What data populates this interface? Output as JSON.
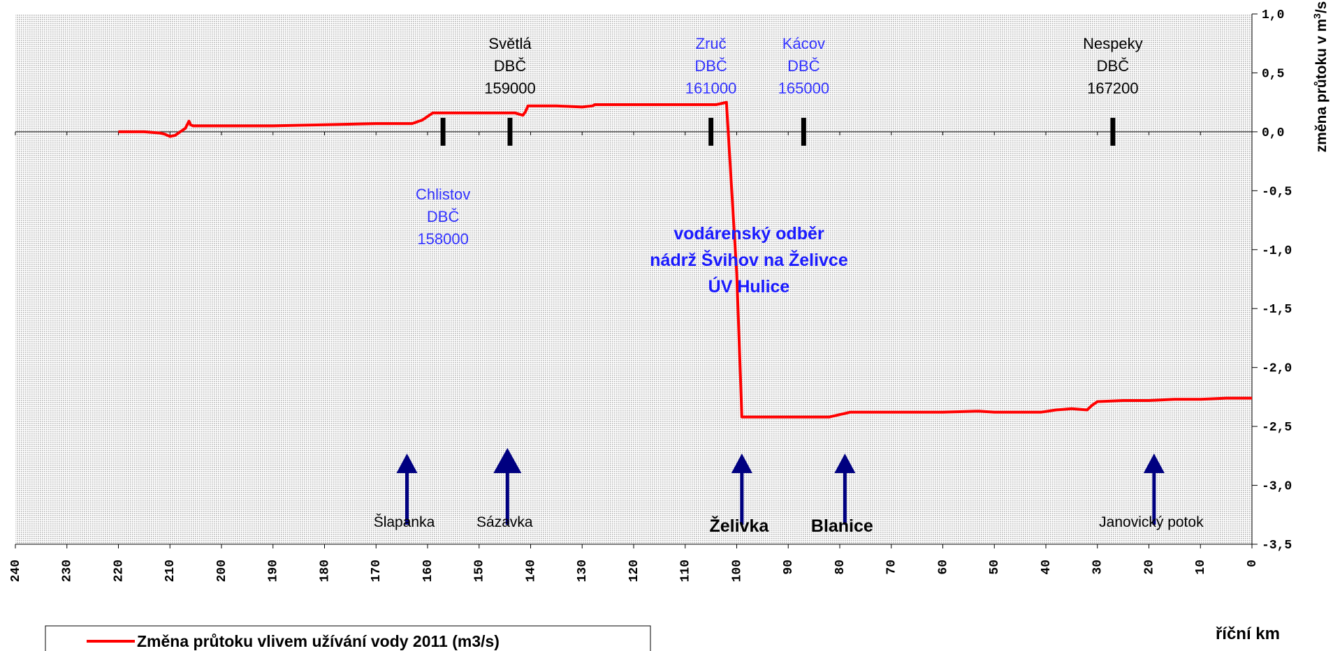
{
  "chart_data": {
    "type": "line",
    "xlabel": "říční km",
    "ylabel_main": "změna průtoku v m",
    "ylabel_sup": "3",
    "ylabel_tail": "/s",
    "xlim": [
      240,
      0
    ],
    "ylim": [
      -3.5,
      1.0
    ],
    "xticks": [
      240,
      230,
      220,
      210,
      200,
      190,
      180,
      170,
      160,
      150,
      140,
      130,
      120,
      110,
      100,
      90,
      80,
      70,
      60,
      50,
      40,
      30,
      20,
      10,
      0
    ],
    "xtick_labels": [
      "240",
      "230",
      "220",
      "210",
      "200",
      "190",
      "180",
      "170",
      "160",
      "150",
      "140",
      "130",
      "120",
      "110",
      "100",
      "90",
      "80",
      "70",
      "60",
      "50",
      "40",
      "30",
      "20",
      "10",
      "0"
    ],
    "yticks": [
      1.0,
      0.5,
      0.0,
      -0.5,
      -1.0,
      -1.5,
      -2.0,
      -2.5,
      -3.0,
      -3.5
    ],
    "ytick_labels": [
      "1,0",
      "0,5",
      "0,0",
      "-0,5",
      "-1,0",
      "-1,5",
      "-2,0",
      "-2,5",
      "-3,0",
      "-3,5"
    ],
    "legend_position": "bottom-left",
    "series": [
      {
        "name": "Změna průtoku vlivem užívání vody 2011 (m3/s)",
        "color": "#ff0000",
        "x": [
          220,
          215,
          212,
          211,
          210,
          209,
          207,
          206.3,
          206,
          205.5,
          200,
          190,
          180,
          170,
          163,
          161,
          159,
          157,
          150,
          143,
          141.5,
          141,
          140.5,
          135,
          130,
          128,
          127.5,
          120,
          110,
          104,
          102,
          100,
          99,
          95,
          90,
          85,
          82,
          80,
          78,
          70,
          60,
          53,
          50,
          45,
          41,
          38,
          35,
          32,
          31,
          30,
          25,
          20,
          15,
          10,
          5,
          0
        ],
        "y": [
          0.0,
          0.0,
          -0.01,
          -0.02,
          -0.04,
          -0.03,
          0.03,
          0.09,
          0.06,
          0.05,
          0.05,
          0.05,
          0.06,
          0.07,
          0.07,
          0.1,
          0.16,
          0.16,
          0.16,
          0.16,
          0.14,
          0.17,
          0.22,
          0.22,
          0.21,
          0.22,
          0.23,
          0.23,
          0.23,
          0.23,
          0.25,
          -1.2,
          -2.42,
          -2.42,
          -2.42,
          -2.42,
          -2.42,
          -2.4,
          -2.38,
          -2.38,
          -2.38,
          -2.37,
          -2.38,
          -2.38,
          -2.38,
          -2.36,
          -2.35,
          -2.36,
          -2.32,
          -2.29,
          -2.28,
          -2.28,
          -2.27,
          -2.27,
          -2.26,
          -2.26
        ]
      }
    ],
    "stations": [
      {
        "lines": [
          "Chlistov",
          "DBČ",
          "158000"
        ],
        "km": 157,
        "color": "#3333ff",
        "label_side": "below"
      },
      {
        "lines": [
          "Světlá",
          "DBČ",
          "159000"
        ],
        "km": 144,
        "color": "#000000",
        "label_side": "above"
      },
      {
        "lines": [
          "Zruč",
          "DBČ",
          "161000"
        ],
        "km": 105,
        "color": "#3333ff",
        "label_side": "above"
      },
      {
        "lines": [
          "Kácov",
          "DBČ",
          "165000"
        ],
        "km": 87,
        "color": "#3333ff",
        "label_side": "above"
      },
      {
        "lines": [
          "Nespeky",
          "DBČ",
          "167200"
        ],
        "km": 27,
        "color": "#000000",
        "label_side": "above"
      }
    ],
    "tributaries": [
      {
        "name": "Šlapanka",
        "km": 164,
        "bold": false
      },
      {
        "name": "Sázavka",
        "km": 144.5,
        "bold": false
      },
      {
        "name": "Želivka",
        "km": 99,
        "bold": true
      },
      {
        "name": "Blanice",
        "km": 79,
        "bold": true
      },
      {
        "name": "Janovický potok",
        "km": 19,
        "bold": false
      }
    ],
    "annotation": {
      "lines": [
        "vodárenský odběr",
        "nádrž Švihov na Želivce",
        "ÚV Hulice"
      ],
      "color": "#1a1aff"
    },
    "colors": {
      "series": "#ff0000",
      "arrows": "#000080",
      "station_marks": "#000000",
      "plot_background": "#ffffff",
      "plot_dots": "#b5b5b5"
    }
  }
}
